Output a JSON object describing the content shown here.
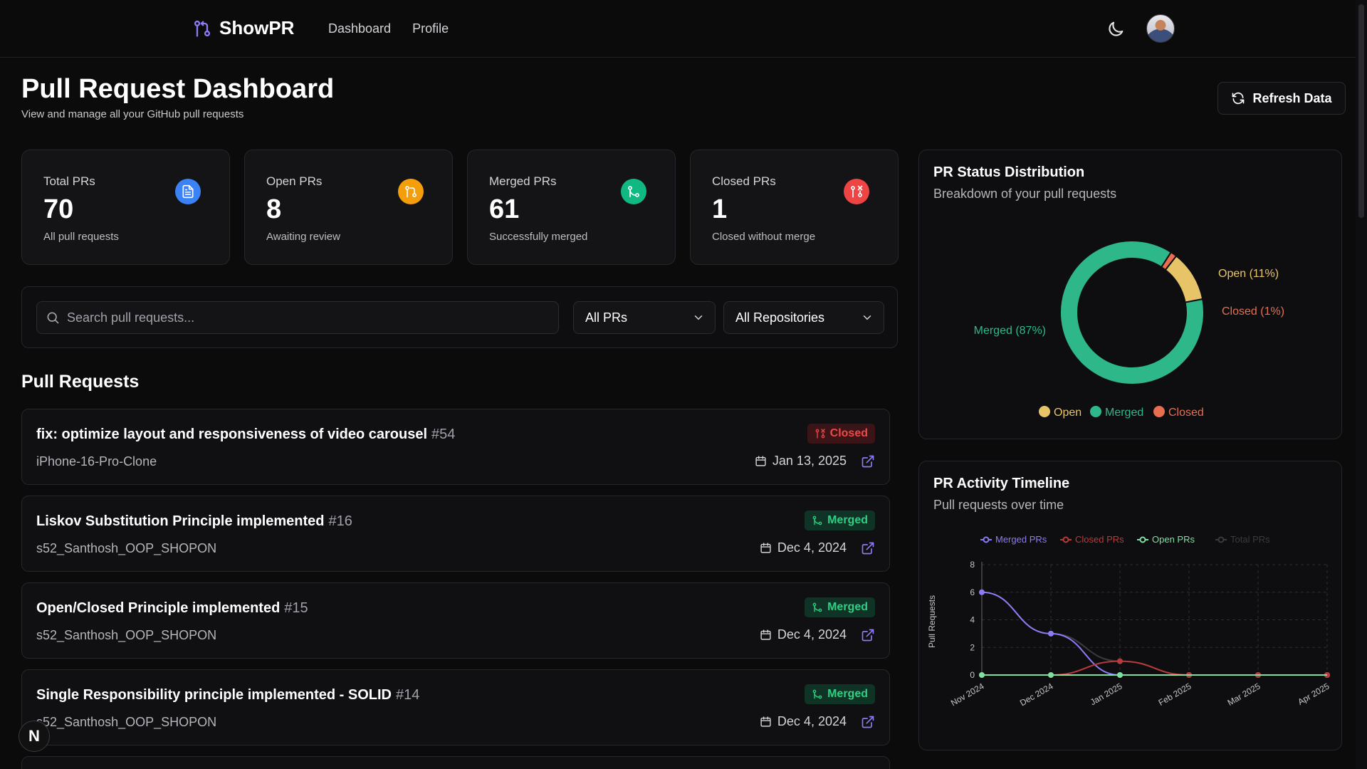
{
  "header": {
    "brand": "ShowPR",
    "nav": [
      "Dashboard",
      "Profile"
    ]
  },
  "page": {
    "title": "Pull Request Dashboard",
    "subtitle": "View and manage all your GitHub pull requests",
    "refresh_label": "Refresh Data"
  },
  "stats": [
    {
      "label": "Total PRs",
      "value": "70",
      "sub": "All pull requests",
      "icon": "document-icon",
      "color": "#3b82f6"
    },
    {
      "label": "Open PRs",
      "value": "8",
      "sub": "Awaiting review",
      "icon": "pull-request-icon",
      "color": "#f59e0b"
    },
    {
      "label": "Merged PRs",
      "value": "61",
      "sub": "Successfully merged",
      "icon": "merge-icon",
      "color": "#10b981"
    },
    {
      "label": "Closed PRs",
      "value": "1",
      "sub": "Closed without merge",
      "icon": "closed-pr-icon",
      "color": "#ef4444"
    }
  ],
  "filters": {
    "search_placeholder": "Search pull requests...",
    "status_selected": "All PRs",
    "repo_selected": "All Repositories"
  },
  "pr_section_title": "Pull Requests",
  "pull_requests": [
    {
      "title": "fix: optimize layout and responsiveness of video carousel",
      "number": "#54",
      "repo": "iPhone-16-Pro-Clone",
      "date": "Jan 13, 2025",
      "status": "Closed"
    },
    {
      "title": "Liskov Substitution Principle implemented",
      "number": "#16",
      "repo": "s52_Santhosh_OOP_SHOPON",
      "date": "Dec 4, 2024",
      "status": "Merged"
    },
    {
      "title": "Open/Closed Principle implemented",
      "number": "#15",
      "repo": "s52_Santhosh_OOP_SHOPON",
      "date": "Dec 4, 2024",
      "status": "Merged"
    },
    {
      "title": "Single Responsibility principle implemented - SOLID",
      "number": "#14",
      "repo": "s52_Santhosh_OOP_SHOPON",
      "date": "Dec 4, 2024",
      "status": "Merged"
    }
  ],
  "fab_label": "N",
  "chart_data": [
    {
      "type": "pie",
      "title": "PR Status Distribution",
      "subtitle": "Breakdown of your pull requests",
      "categories": [
        "Open",
        "Merged",
        "Closed"
      ],
      "values": [
        8,
        61,
        1
      ],
      "data_labels": [
        "Open (11%)",
        "Merged (87%)",
        "Closed (1%)"
      ],
      "colors": [
        "#e8c468",
        "#2eb88a",
        "#e76e50"
      ],
      "legend": "bottom"
    },
    {
      "type": "line",
      "title": "PR Activity Timeline",
      "subtitle": "Pull requests over time",
      "categories": [
        "Nov 2024",
        "Dec 2024",
        "Jan 2025",
        "Feb 2025",
        "Mar 2025",
        "Apr 2025"
      ],
      "series": [
        {
          "name": "Merged PRs",
          "values": [
            6,
            3,
            0,
            0,
            0,
            0
          ],
          "color": "#8b7cf6"
        },
        {
          "name": "Closed PRs",
          "values": [
            0,
            0,
            1,
            0,
            0,
            0
          ],
          "color": "#b93a3a"
        },
        {
          "name": "Open PRs",
          "values": [
            0,
            0,
            0,
            0,
            0,
            0
          ],
          "color": "#7ee0a0"
        },
        {
          "name": "Total PRs",
          "values": [
            6,
            3,
            1,
            0,
            0,
            0
          ],
          "color": "#3a3a3f"
        }
      ],
      "ylabel": "Pull Requests",
      "ylim": [
        0,
        8
      ],
      "yticks": [
        0,
        2,
        4,
        6,
        8
      ],
      "grid": true,
      "legend": "top"
    }
  ]
}
